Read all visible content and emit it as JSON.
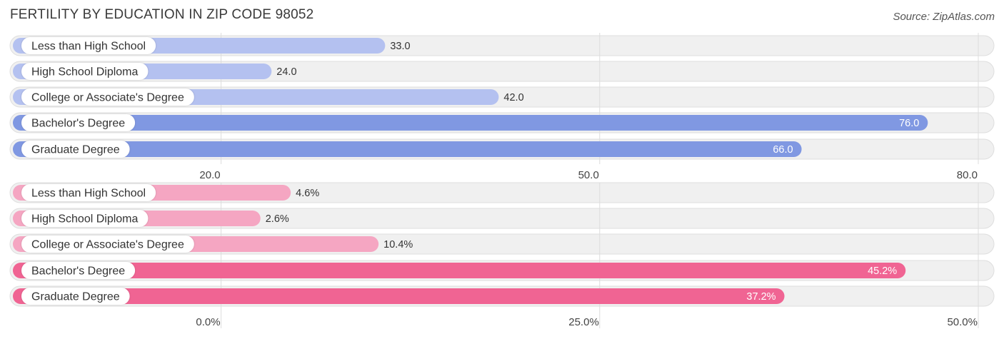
{
  "title": "FERTILITY BY EDUCATION IN ZIP CODE 98052",
  "source": "Source: ZipAtlas.com",
  "colors": {
    "track": "#f0f0f0",
    "track_border": "#dedede",
    "grid": "#dcdcdc",
    "blue_light": "#b4c1f0",
    "blue_dark": "#8098e2",
    "pink_light": "#f5a6c2",
    "pink_dark": "#f06493",
    "value_inside": "#ffffff",
    "value_outside": "#333333"
  },
  "chart_data": [
    {
      "type": "bar",
      "orientation": "horizontal",
      "palette": "blue",
      "categories": [
        "Less than High School",
        "High School Diploma",
        "College or Associate's Degree",
        "Bachelor's Degree",
        "Graduate Degree"
      ],
      "values": [
        33.0,
        24.0,
        42.0,
        76.0,
        66.0
      ],
      "value_labels": [
        "33.0",
        "24.0",
        "42.0",
        "76.0",
        "66.0"
      ],
      "highlight": [
        false,
        false,
        false,
        true,
        true
      ],
      "xlim": [
        3.5,
        80.0
      ],
      "ticks": [
        20.0,
        50.0,
        80.0
      ],
      "tick_labels": [
        "20.0",
        "50.0",
        "80.0"
      ]
    },
    {
      "type": "bar",
      "orientation": "horizontal",
      "palette": "pink",
      "categories": [
        "Less than High School",
        "High School Diploma",
        "College or Associate's Degree",
        "Bachelor's Degree",
        "Graduate Degree"
      ],
      "values": [
        4.6,
        2.6,
        10.4,
        45.2,
        37.2
      ],
      "value_labels": [
        "4.6%",
        "2.6%",
        "10.4%",
        "45.2%",
        "37.2%"
      ],
      "highlight": [
        false,
        false,
        false,
        true,
        true
      ],
      "xlim": [
        -13.75,
        50.0
      ],
      "ticks": [
        0.0,
        25.0,
        50.0
      ],
      "tick_labels": [
        "0.0%",
        "25.0%",
        "50.0%"
      ]
    }
  ]
}
